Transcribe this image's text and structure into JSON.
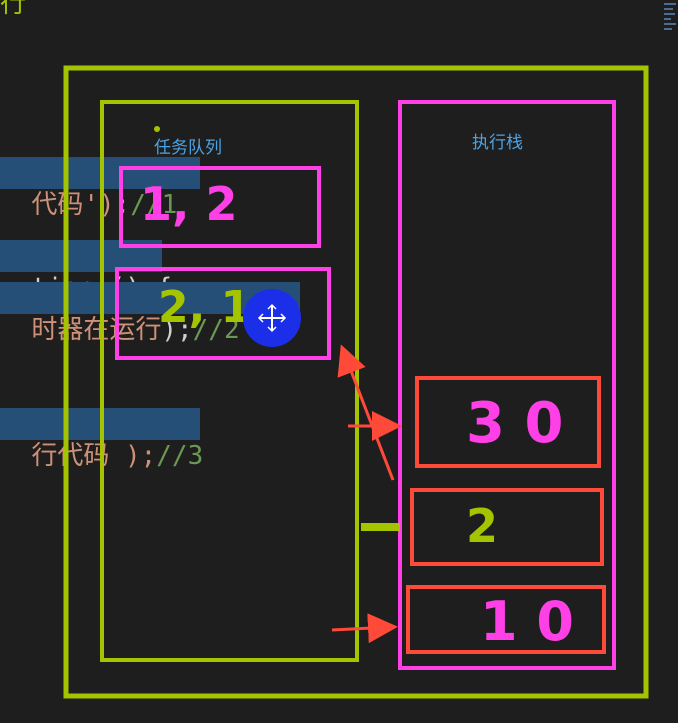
{
  "code": {
    "top_fragment": "行",
    "line1": {
      "text": "代码');",
      "comment": "//1"
    },
    "line2": {
      "text": "tion () {"
    },
    "line3": {
      "text": "时器在运行",
      "tail": ");",
      "comment": "//2"
    },
    "line4": {
      "text": "行代码 );",
      "comment": "//3"
    }
  },
  "diagram": {
    "task_queue_label": "任务队列",
    "call_stack_label": "执行栈",
    "queue_items": [
      "1, 2",
      "2, 1"
    ],
    "stack_items": [
      "3 0",
      "2",
      "1 0"
    ]
  },
  "colors": {
    "outer_frame": "#a4c400",
    "queue_box": "#a4c400",
    "magenta": "#ff40e6",
    "red": "#ff4a3a",
    "label_blue": "#4aa3e6",
    "cursor_blue": "#1c2fe8"
  },
  "icons": [
    "move-cursor-icon"
  ]
}
